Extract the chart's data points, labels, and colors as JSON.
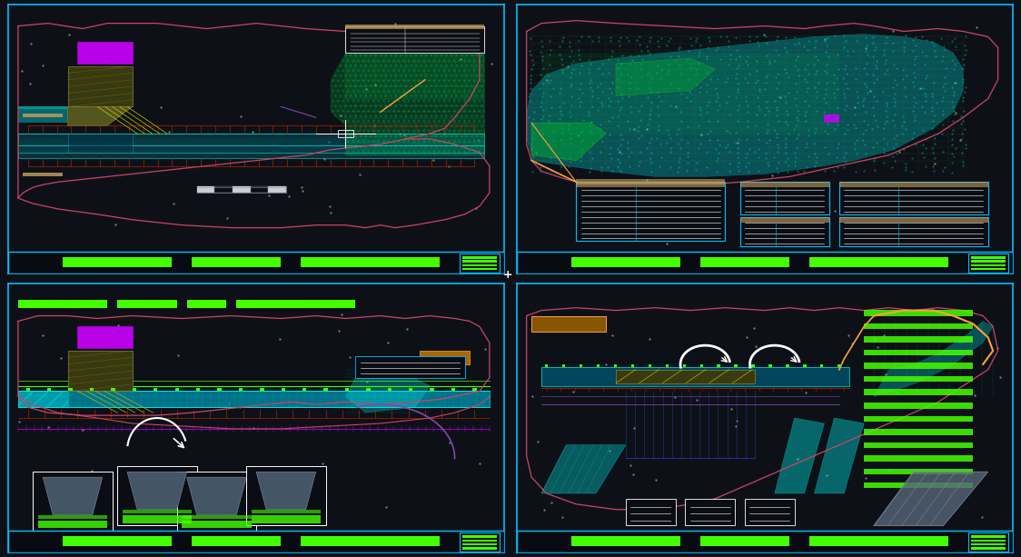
{
  "bg_color": "#0d1117",
  "border_color": "#00bfff",
  "outer_border": "#1144aa",
  "pink": "#cc4466",
  "cyan": "#00e8e8",
  "cyan2": "#00ffff",
  "green": "#44ff00",
  "magenta": "#cc00ff",
  "yellow": "#ffff00",
  "orange": "#ffa040",
  "white": "#ffffff",
  "gray": "#888899",
  "olive": "#4a4a18",
  "red_tick": "#aa2200",
  "blue_dark": "#001888",
  "purple": "#8844aa",
  "tan": "#c8a060",
  "fig_w": 11.24,
  "fig_h": 6.13
}
